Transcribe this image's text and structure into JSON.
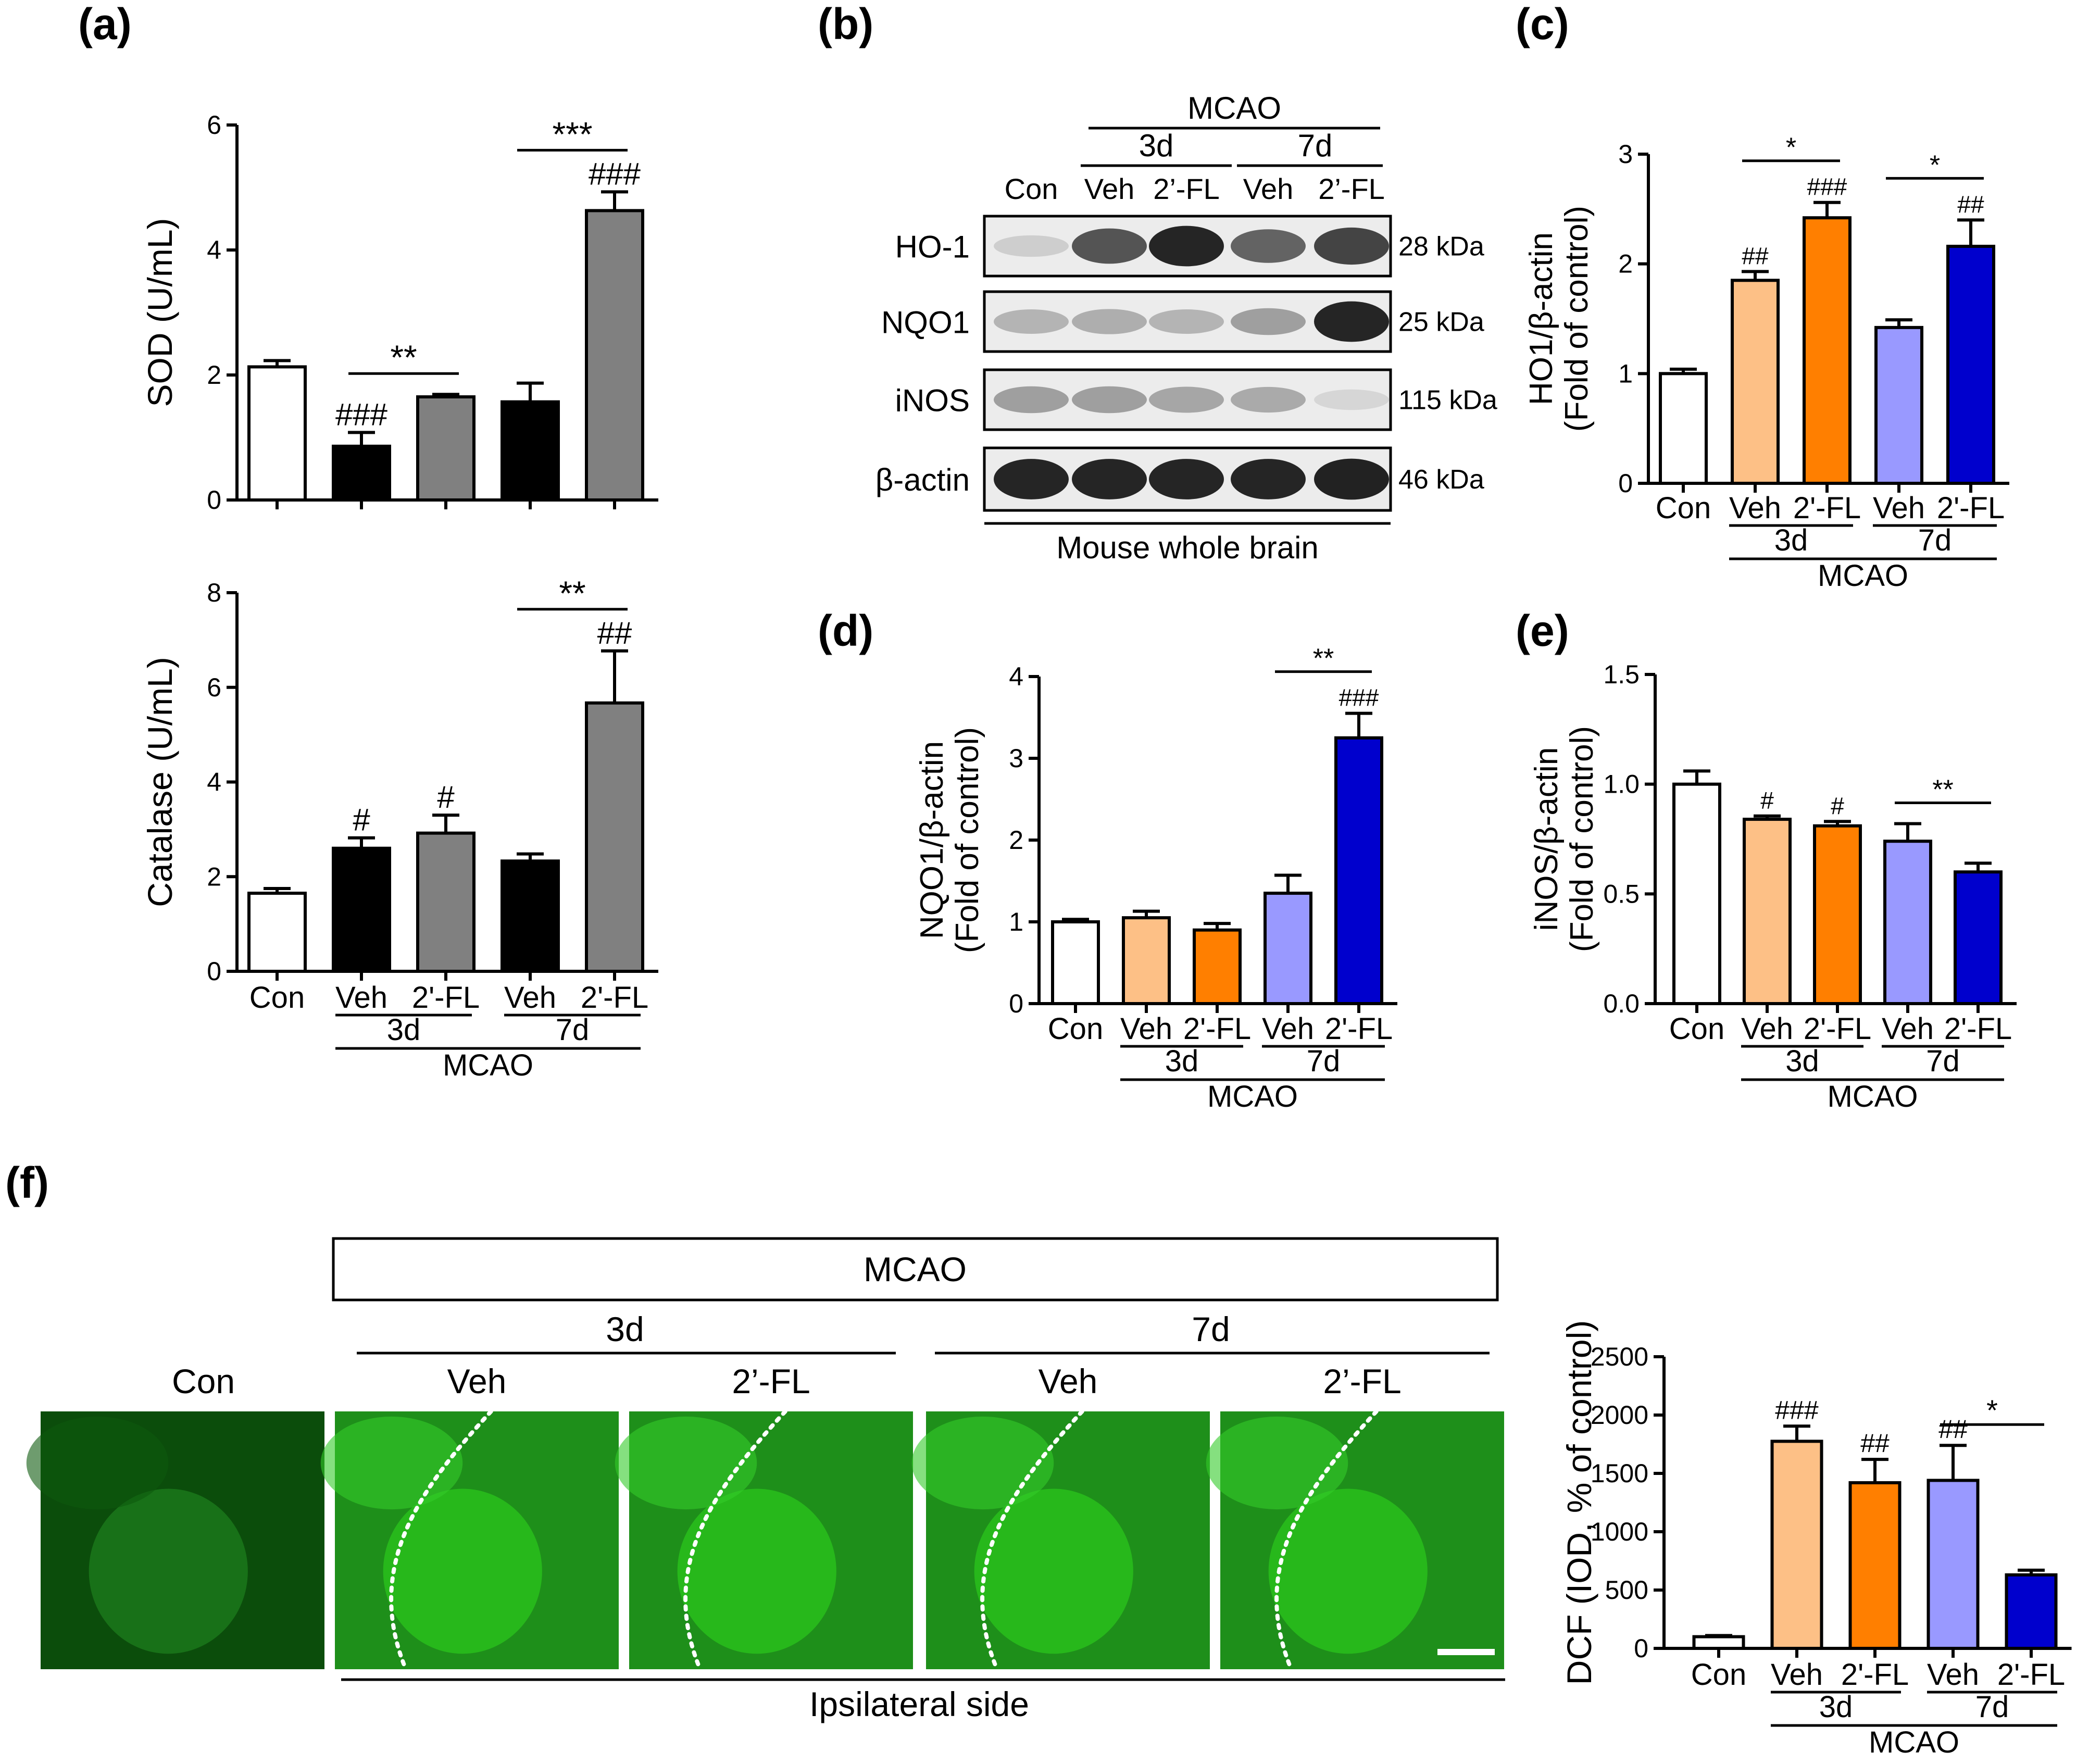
{
  "panel_labels": {
    "a": "(a)",
    "b": "(b)",
    "c": "(c)",
    "d": "(d)",
    "e": "(e)",
    "f": "(f)"
  },
  "groups": {
    "con": "Con",
    "veh": "Veh",
    "fl": "2'-FL",
    "fl_blot": "2’-FL",
    "d3": "3d",
    "d7": "7d",
    "mcao": "MCAO"
  },
  "colors": {
    "con": "#ffffff",
    "black": "#000000",
    "grey": "#808080",
    "orange_light": "#fdc086",
    "orange": "#ff7f00",
    "purple_light": "#9999ff",
    "blue": "#0000cd",
    "fluor": "#29c21c"
  },
  "chart_data": [
    {
      "id": "sod",
      "type": "bar",
      "ylabel": "SOD (U/mL)",
      "ylim": [
        0,
        6
      ],
      "yticks": [
        "0",
        "2",
        "4",
        "6"
      ],
      "categories": [
        "Con",
        "Veh 3d",
        "2'-FL 3d",
        "Veh 7d",
        "2'-FL 7d"
      ],
      "values": [
        2.13,
        0.86,
        1.65,
        1.57,
        4.63
      ],
      "errors": [
        0.1,
        0.22,
        0.04,
        0.3,
        0.3
      ],
      "bar_colors": [
        "#ffffff",
        "#000000",
        "#808080",
        "#000000",
        "#808080"
      ],
      "annotations": [
        "",
        "###",
        "",
        "",
        "###"
      ],
      "brackets": [
        {
          "from": 1,
          "to": 2,
          "label": "**"
        },
        {
          "from": 3,
          "to": 4,
          "label": "***"
        }
      ]
    },
    {
      "id": "catalase",
      "type": "bar",
      "ylabel": "Catalase (U/mL)",
      "ylim": [
        0,
        8
      ],
      "yticks": [
        "0",
        "2",
        "4",
        "6",
        "8"
      ],
      "categories": [
        "Con",
        "Veh 3d",
        "2'-FL 3d",
        "Veh 7d",
        "2'-FL 7d"
      ],
      "values": [
        1.65,
        2.6,
        2.92,
        2.33,
        5.67
      ],
      "errors": [
        0.1,
        0.22,
        0.38,
        0.15,
        1.1
      ],
      "bar_colors": [
        "#ffffff",
        "#000000",
        "#808080",
        "#000000",
        "#808080"
      ],
      "annotations": [
        "",
        "#",
        "#",
        "",
        "##"
      ],
      "brackets": [
        {
          "from": 3,
          "to": 4,
          "label": "**"
        }
      ]
    },
    {
      "id": "ho1",
      "type": "bar",
      "ylabel": [
        "HO1/β-actin",
        "(Fold of control)"
      ],
      "ylim": [
        0,
        3
      ],
      "yticks": [
        "0",
        "1",
        "2",
        "3"
      ],
      "categories": [
        "Con",
        "Veh 3d",
        "2'-FL 3d",
        "Veh 7d",
        "2'-FL 7d"
      ],
      "values": [
        1.0,
        1.85,
        2.42,
        1.42,
        2.16
      ],
      "errors": [
        0.04,
        0.08,
        0.14,
        0.07,
        0.24
      ],
      "bar_colors": [
        "#ffffff",
        "#fdc086",
        "#ff7f00",
        "#9999ff",
        "#0000cd"
      ],
      "annotations": [
        "",
        "##",
        "###",
        "",
        "##"
      ],
      "brackets": [
        {
          "from": 1,
          "to": 2,
          "label": "*"
        },
        {
          "from": 3,
          "to": 4,
          "label": "*"
        }
      ]
    },
    {
      "id": "nqo1",
      "type": "bar",
      "ylabel": [
        "NQO1/β-actin",
        "(Fold of control)"
      ],
      "ylim": [
        0,
        4
      ],
      "yticks": [
        "0",
        "1",
        "2",
        "3",
        "4"
      ],
      "categories": [
        "Con",
        "Veh 3d",
        "2'-FL 3d",
        "Veh 7d",
        "2'-FL 7d"
      ],
      "values": [
        1.0,
        1.05,
        0.9,
        1.35,
        3.25
      ],
      "errors": [
        0.03,
        0.08,
        0.08,
        0.22,
        0.3
      ],
      "bar_colors": [
        "#ffffff",
        "#fdc086",
        "#ff7f00",
        "#9999ff",
        "#0000cd"
      ],
      "annotations": [
        "",
        "",
        "",
        "",
        "###"
      ],
      "brackets": [
        {
          "from": 3,
          "to": 4,
          "label": "**"
        }
      ]
    },
    {
      "id": "inos",
      "type": "bar",
      "ylabel": [
        "iNOS/β-actin",
        "(Fold of control)"
      ],
      "ylim": [
        0,
        1.5
      ],
      "yticks": [
        "0.0",
        "0.5",
        "1.0",
        "1.5"
      ],
      "categories": [
        "Con",
        "Veh 3d",
        "2'-FL 3d",
        "Veh 7d",
        "2'-FL 7d"
      ],
      "values": [
        1.0,
        0.84,
        0.81,
        0.74,
        0.6
      ],
      "errors": [
        0.06,
        0.015,
        0.02,
        0.08,
        0.04
      ],
      "bar_colors": [
        "#ffffff",
        "#fdc086",
        "#ff7f00",
        "#9999ff",
        "#0000cd"
      ],
      "annotations": [
        "",
        "#",
        "#",
        "",
        ""
      ],
      "brackets": [
        {
          "from": 3,
          "to": 4,
          "label": "**"
        }
      ]
    },
    {
      "id": "dcf",
      "type": "bar",
      "ylabel": "DCF (IOD, % of control)",
      "ylim": [
        0,
        2500
      ],
      "yticks": [
        "0",
        "500",
        "1000",
        "1500",
        "2000",
        "2500"
      ],
      "categories": [
        "Con",
        "Veh 3d",
        "2'-FL 3d",
        "Veh 7d",
        "2'-FL 7d"
      ],
      "values": [
        100,
        1775,
        1420,
        1440,
        630
      ],
      "errors": [
        10,
        130,
        200,
        300,
        40
      ],
      "bar_colors": [
        "#ffffff",
        "#fdc086",
        "#ff7f00",
        "#9999ff",
        "#0000cd"
      ],
      "annotations": [
        "",
        "###",
        "##",
        "##",
        ""
      ],
      "brackets": [
        {
          "from": 3,
          "to": 4,
          "label": "*"
        }
      ]
    }
  ],
  "western_blot": {
    "header": "MCAO",
    "sub_headers": [
      "3d",
      "7d"
    ],
    "lanes": [
      "Con",
      "Veh",
      "2’-FL",
      "Veh",
      "2’-FL"
    ],
    "rows": [
      {
        "protein": "HO-1",
        "kda": "28 kDa",
        "intensity": [
          0.12,
          0.72,
          0.95,
          0.65,
          0.8
        ]
      },
      {
        "protein": "NQO1",
        "kda": "25 kDa",
        "intensity": [
          0.25,
          0.28,
          0.25,
          0.35,
          0.95
        ]
      },
      {
        "protein": "iNOS",
        "kda": "115 kDa",
        "intensity": [
          0.35,
          0.35,
          0.32,
          0.3,
          0.08
        ]
      },
      {
        "protein": "β-actin",
        "kda": "46 kDa",
        "intensity": [
          0.95,
          0.95,
          0.95,
          0.95,
          0.97
        ]
      }
    ],
    "footer": "Mouse whole brain"
  },
  "fluorescence": {
    "header": "MCAO",
    "sub_headers": [
      "3d",
      "7d"
    ],
    "columns": [
      "Con",
      "Veh",
      "2’-FL",
      "Veh",
      "2’-FL"
    ],
    "footer": "Ipsilateral side"
  }
}
